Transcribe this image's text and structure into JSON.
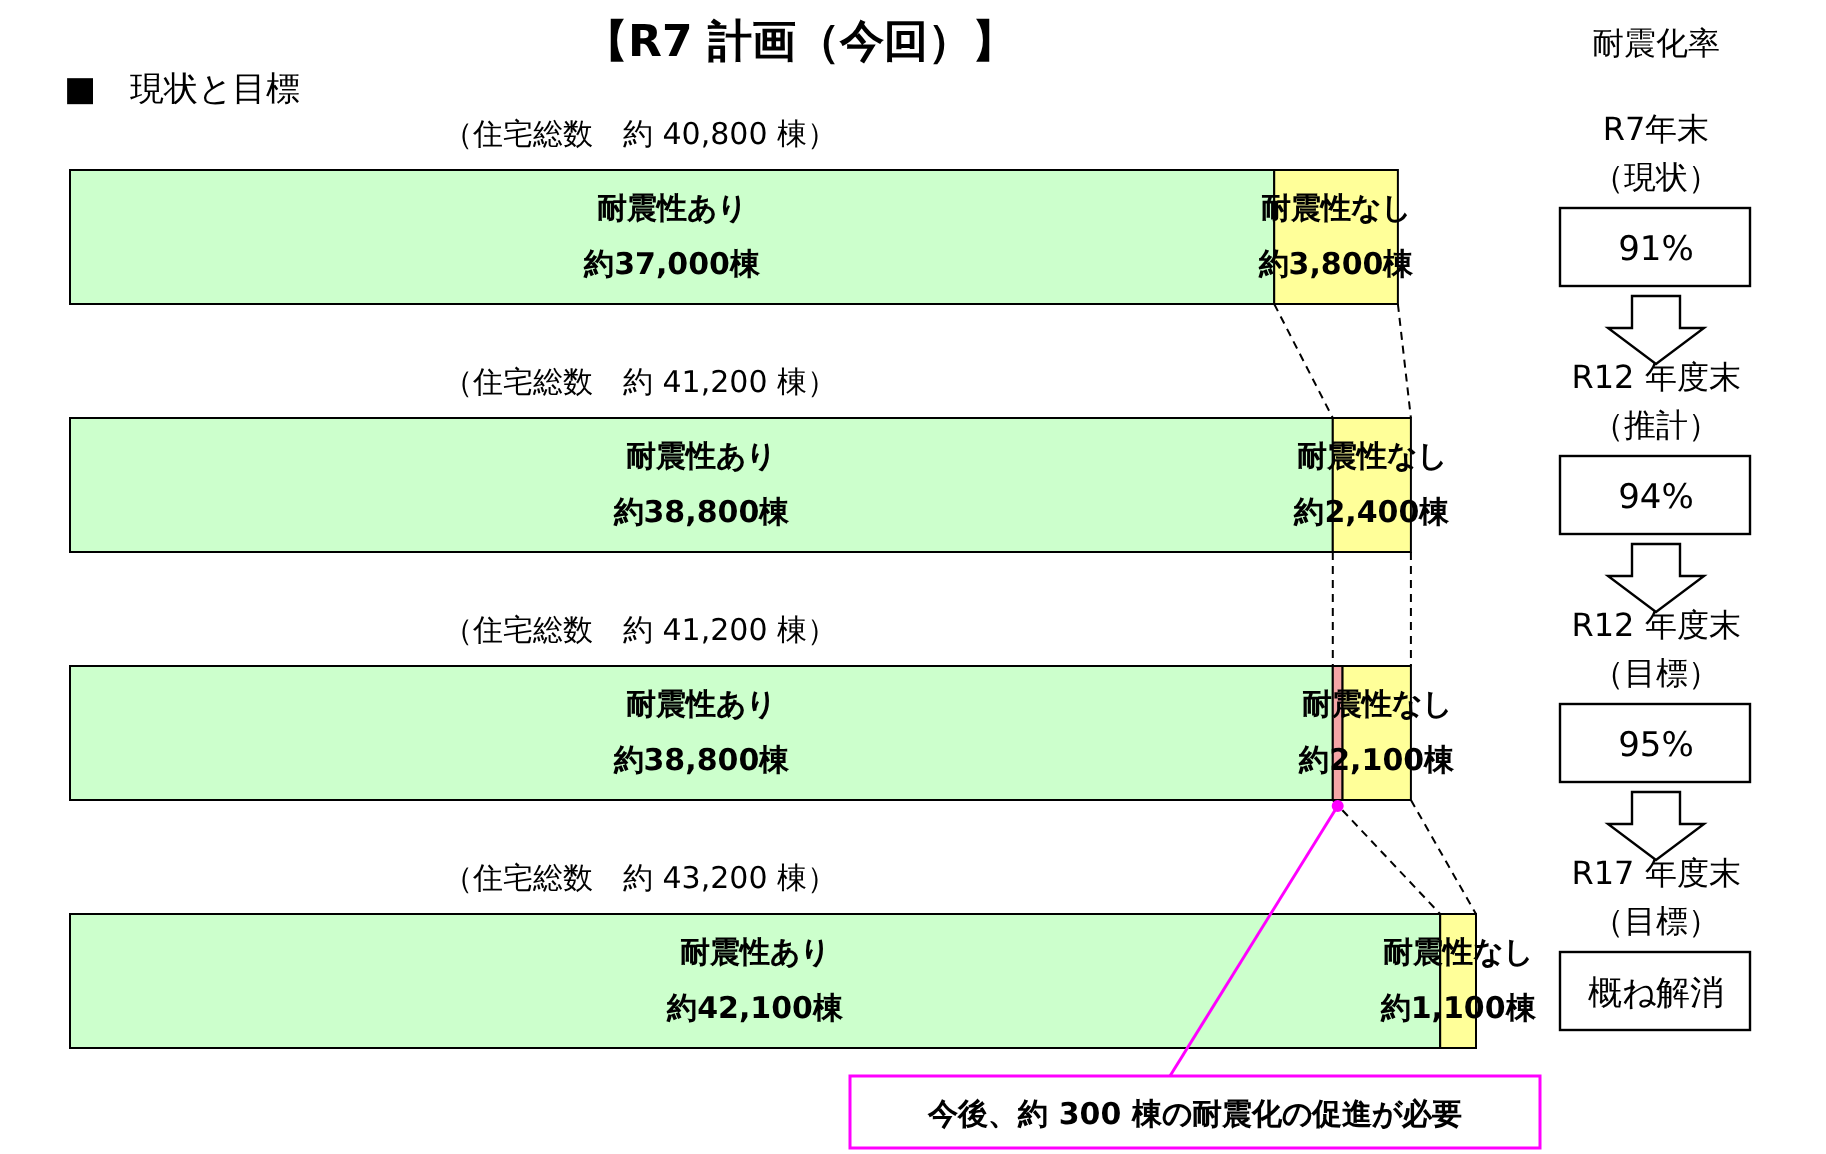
{
  "chart_data": [
    {
      "type": "bar",
      "orientation": "horizontal",
      "stacked": true,
      "title": "【R7 計画（今回）】",
      "subtitle": "■　現状と目標",
      "categories": [
        null,
        null,
        null,
        null
      ],
      "series": [
        {
          "name": "耐震性あり",
          "color": "#ccffcc",
          "values": [
            37000,
            38800,
            38800,
            42100
          ],
          "value_labels": [
            "約37,000棟",
            "約38,800棟",
            "約38,800棟",
            "約42,100棟"
          ]
        },
        {
          "color": "#f4a6a6",
          "values": [
            null,
            null,
            300,
            null
          ]
        },
        {
          "name": "耐震性なし",
          "color": "#ffff99",
          "values": [
            3800,
            2400,
            2100,
            1100
          ],
          "value_labels": [
            "約3,800棟",
            "約2,400棟",
            "約2,100棟",
            "約1,100棟"
          ]
        }
      ],
      "totals": [
        "（住宅総数　約 40,800 棟）",
        "（住宅総数　約 41,200 棟）",
        "（住宅総数　約 41,200 棟）",
        "（住宅総数　約 43,200 棟）"
      ],
      "annotations": [
        "今後、約 300 棟の耐震化の促進が必要"
      ]
    },
    {
      "type": "other",
      "title": "耐震化率",
      "categories": [
        "R7年末（現状）",
        "R12 年度末（推計）",
        "R12 年度末（目標）",
        "R17 年度末（目標）"
      ],
      "value_labels": [
        "91%",
        "94%",
        "95%",
        "概ね解消"
      ]
    }
  ]
}
